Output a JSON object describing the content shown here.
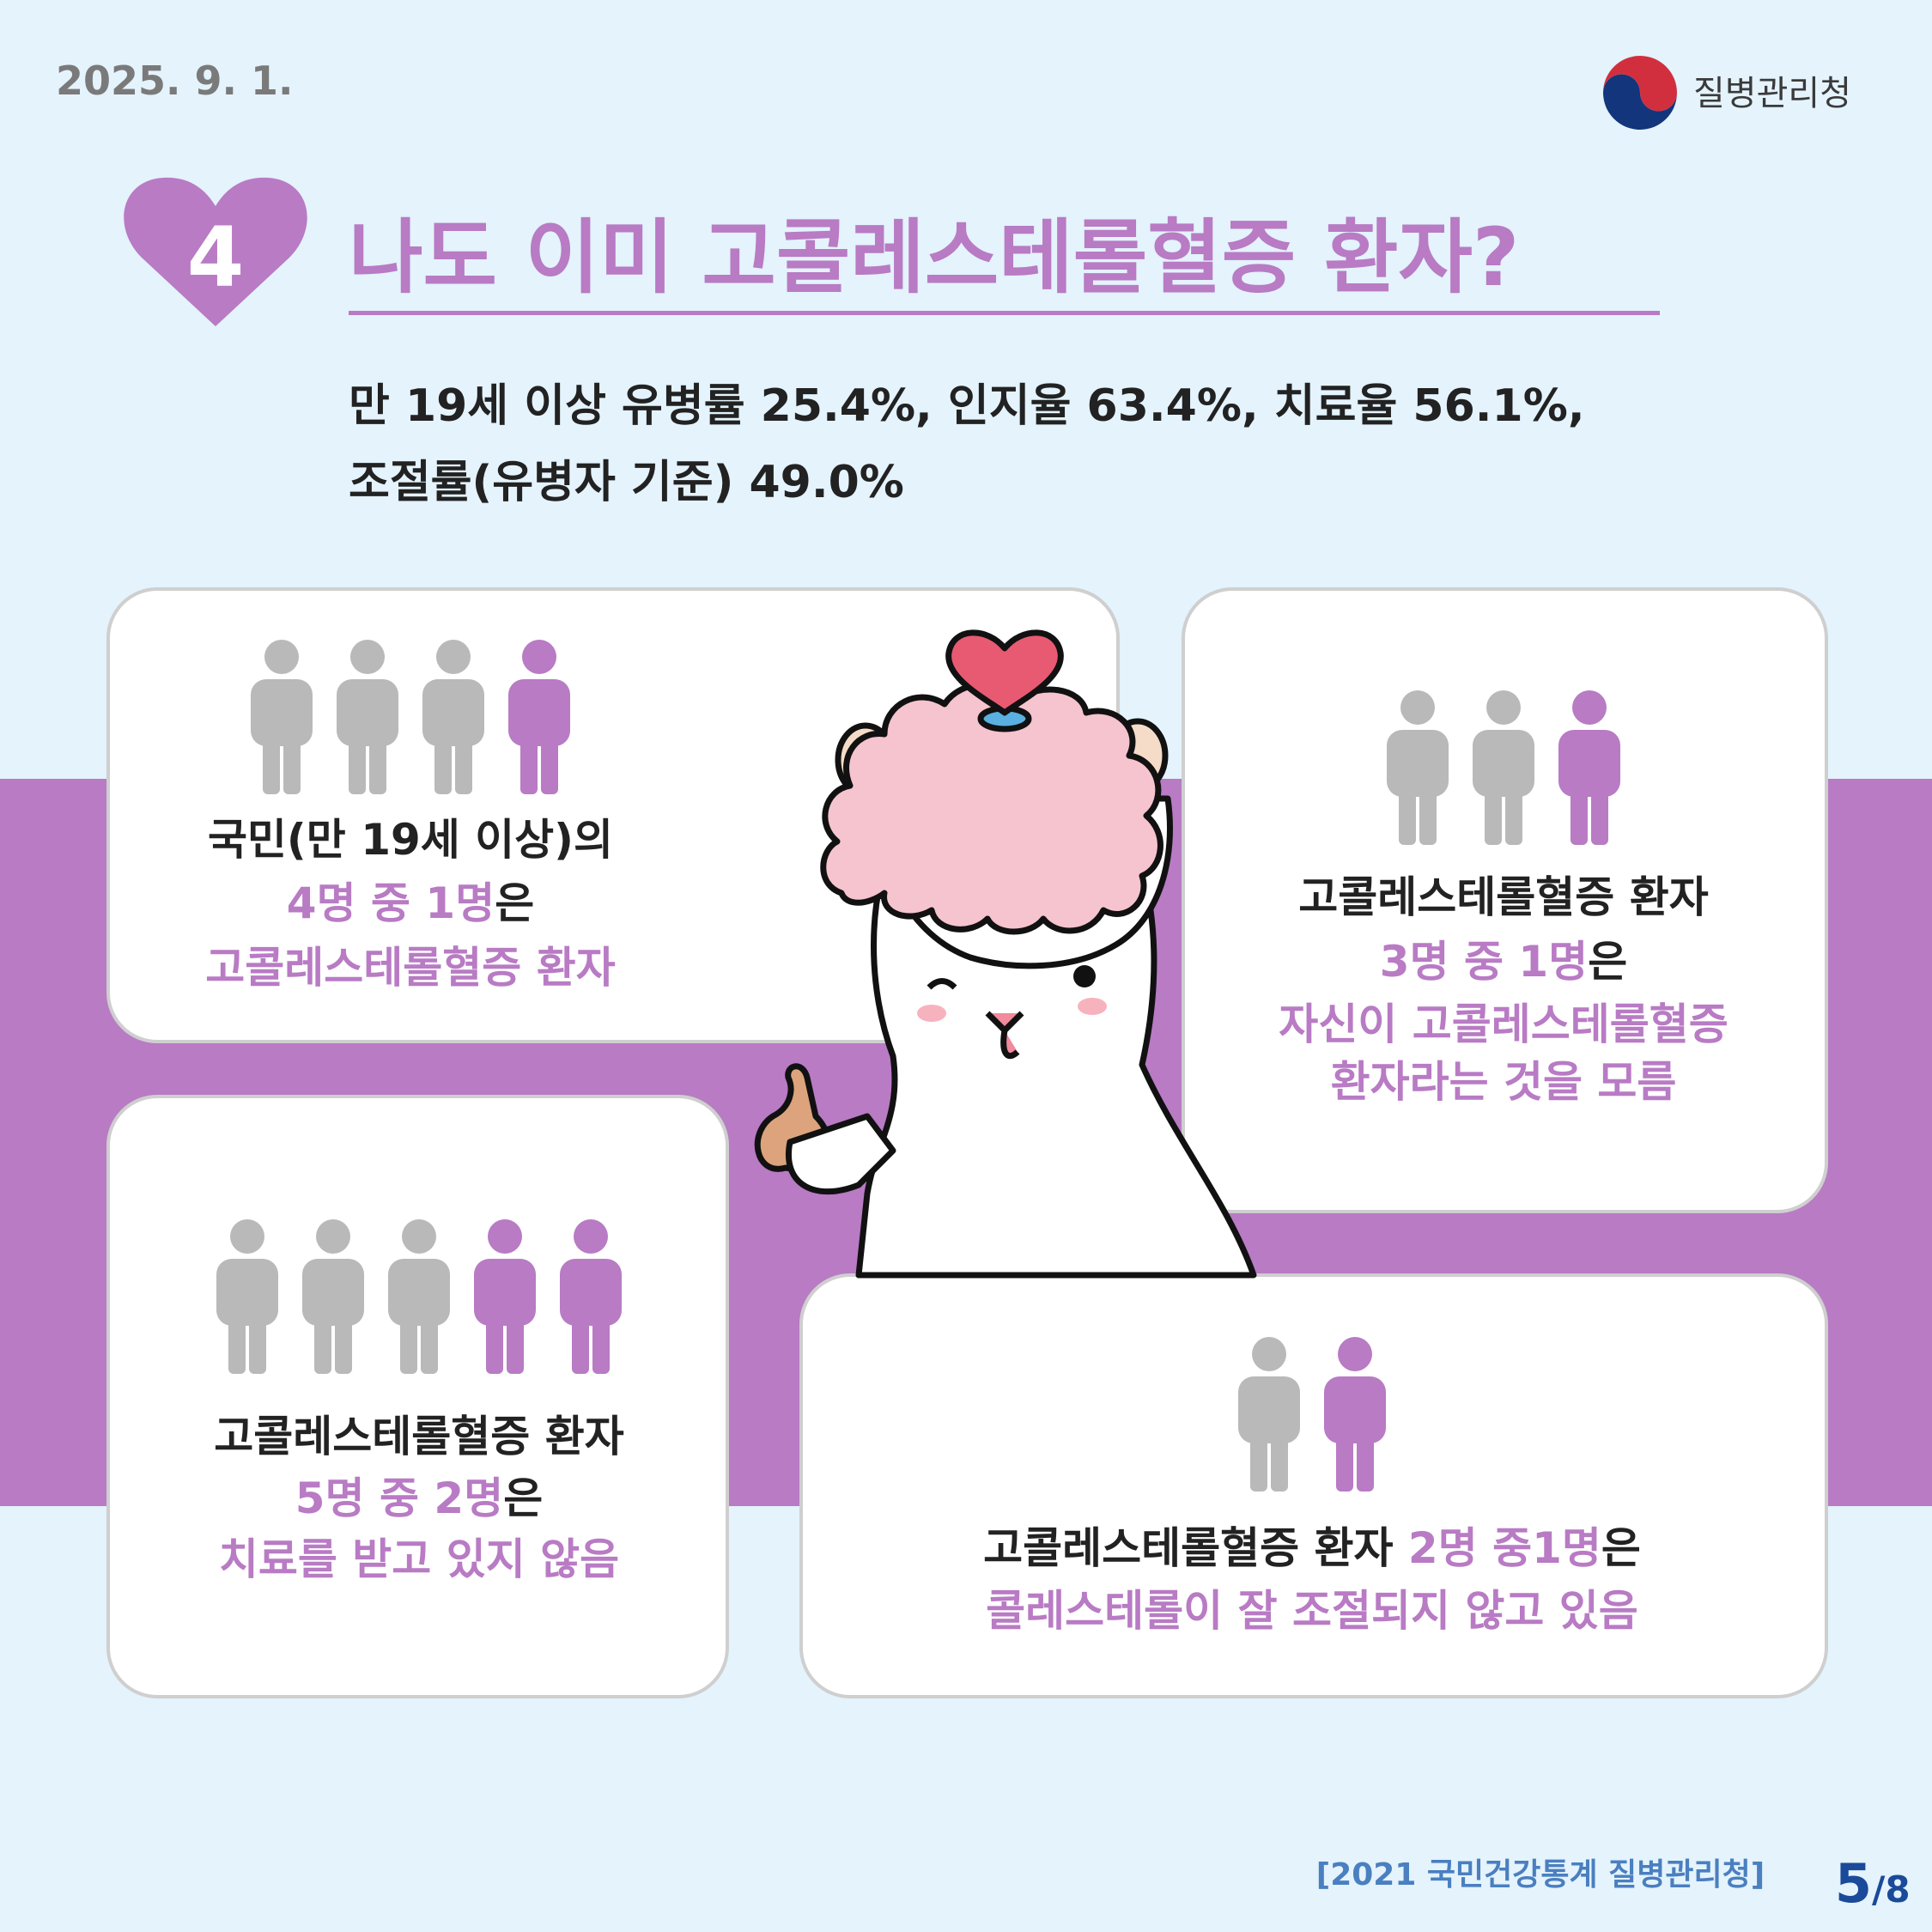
{
  "header": {
    "date": "2025. 9. 1.",
    "agency": "질병관리청"
  },
  "section": {
    "number": "4",
    "title": "나도 이미 고콜레스테롤혈증 환자?"
  },
  "summary": {
    "lines": [
      "만 19세 이상 유병률 25.4%, 인지율 63.4%, 치료율 56.1%,",
      "조절률(유병자 기준) 49.0%"
    ]
  },
  "cards": [
    {
      "people": {
        "gray": 3,
        "purple": 1
      },
      "lines": [
        [
          {
            "text": "국민(만 19세 이상)의",
            "accent": false
          }
        ],
        [
          {
            "text": "4명 중 1명",
            "accent": true
          },
          {
            "text": "은",
            "accent": false
          }
        ],
        [
          {
            "text": "고콜레스테롤혈증 환자",
            "accent": true
          }
        ]
      ]
    },
    {
      "people": {
        "gray": 2,
        "purple": 1
      },
      "lines": [
        [
          {
            "text": "고콜레스테롤혈증 환자",
            "accent": false
          }
        ],
        [
          {
            "text": "3명 중 1명",
            "accent": true
          },
          {
            "text": "은",
            "accent": false
          }
        ],
        [
          {
            "text": "자신이 고콜레스테롤혈증",
            "accent": true
          }
        ],
        [
          {
            "text": "환자라는 것을 모름",
            "accent": true
          }
        ]
      ]
    },
    {
      "people": {
        "gray": 3,
        "purple": 2
      },
      "lines": [
        [
          {
            "text": "고콜레스테롤혈증 환자",
            "accent": false
          }
        ],
        [
          {
            "text": "5명 중 2명",
            "accent": true
          },
          {
            "text": "은",
            "accent": false
          }
        ],
        [
          {
            "text": "치료를 받고 있지 않음",
            "accent": true
          }
        ]
      ]
    },
    {
      "people": {
        "gray": 1,
        "purple": 1
      },
      "lines": [
        [
          {
            "text": "고콜레스테롤혈증 환자 ",
            "accent": false
          },
          {
            "text": "2명 중1명",
            "accent": true
          },
          {
            "text": "은",
            "accent": false
          }
        ],
        [
          {
            "text": "콜레스테롤이 잘 조절되지 않고 있음",
            "accent": true
          }
        ]
      ]
    }
  ],
  "footer": {
    "source": "[2021 국민건강통계 질병관리청]",
    "page_current": "5",
    "page_total": "/8"
  }
}
